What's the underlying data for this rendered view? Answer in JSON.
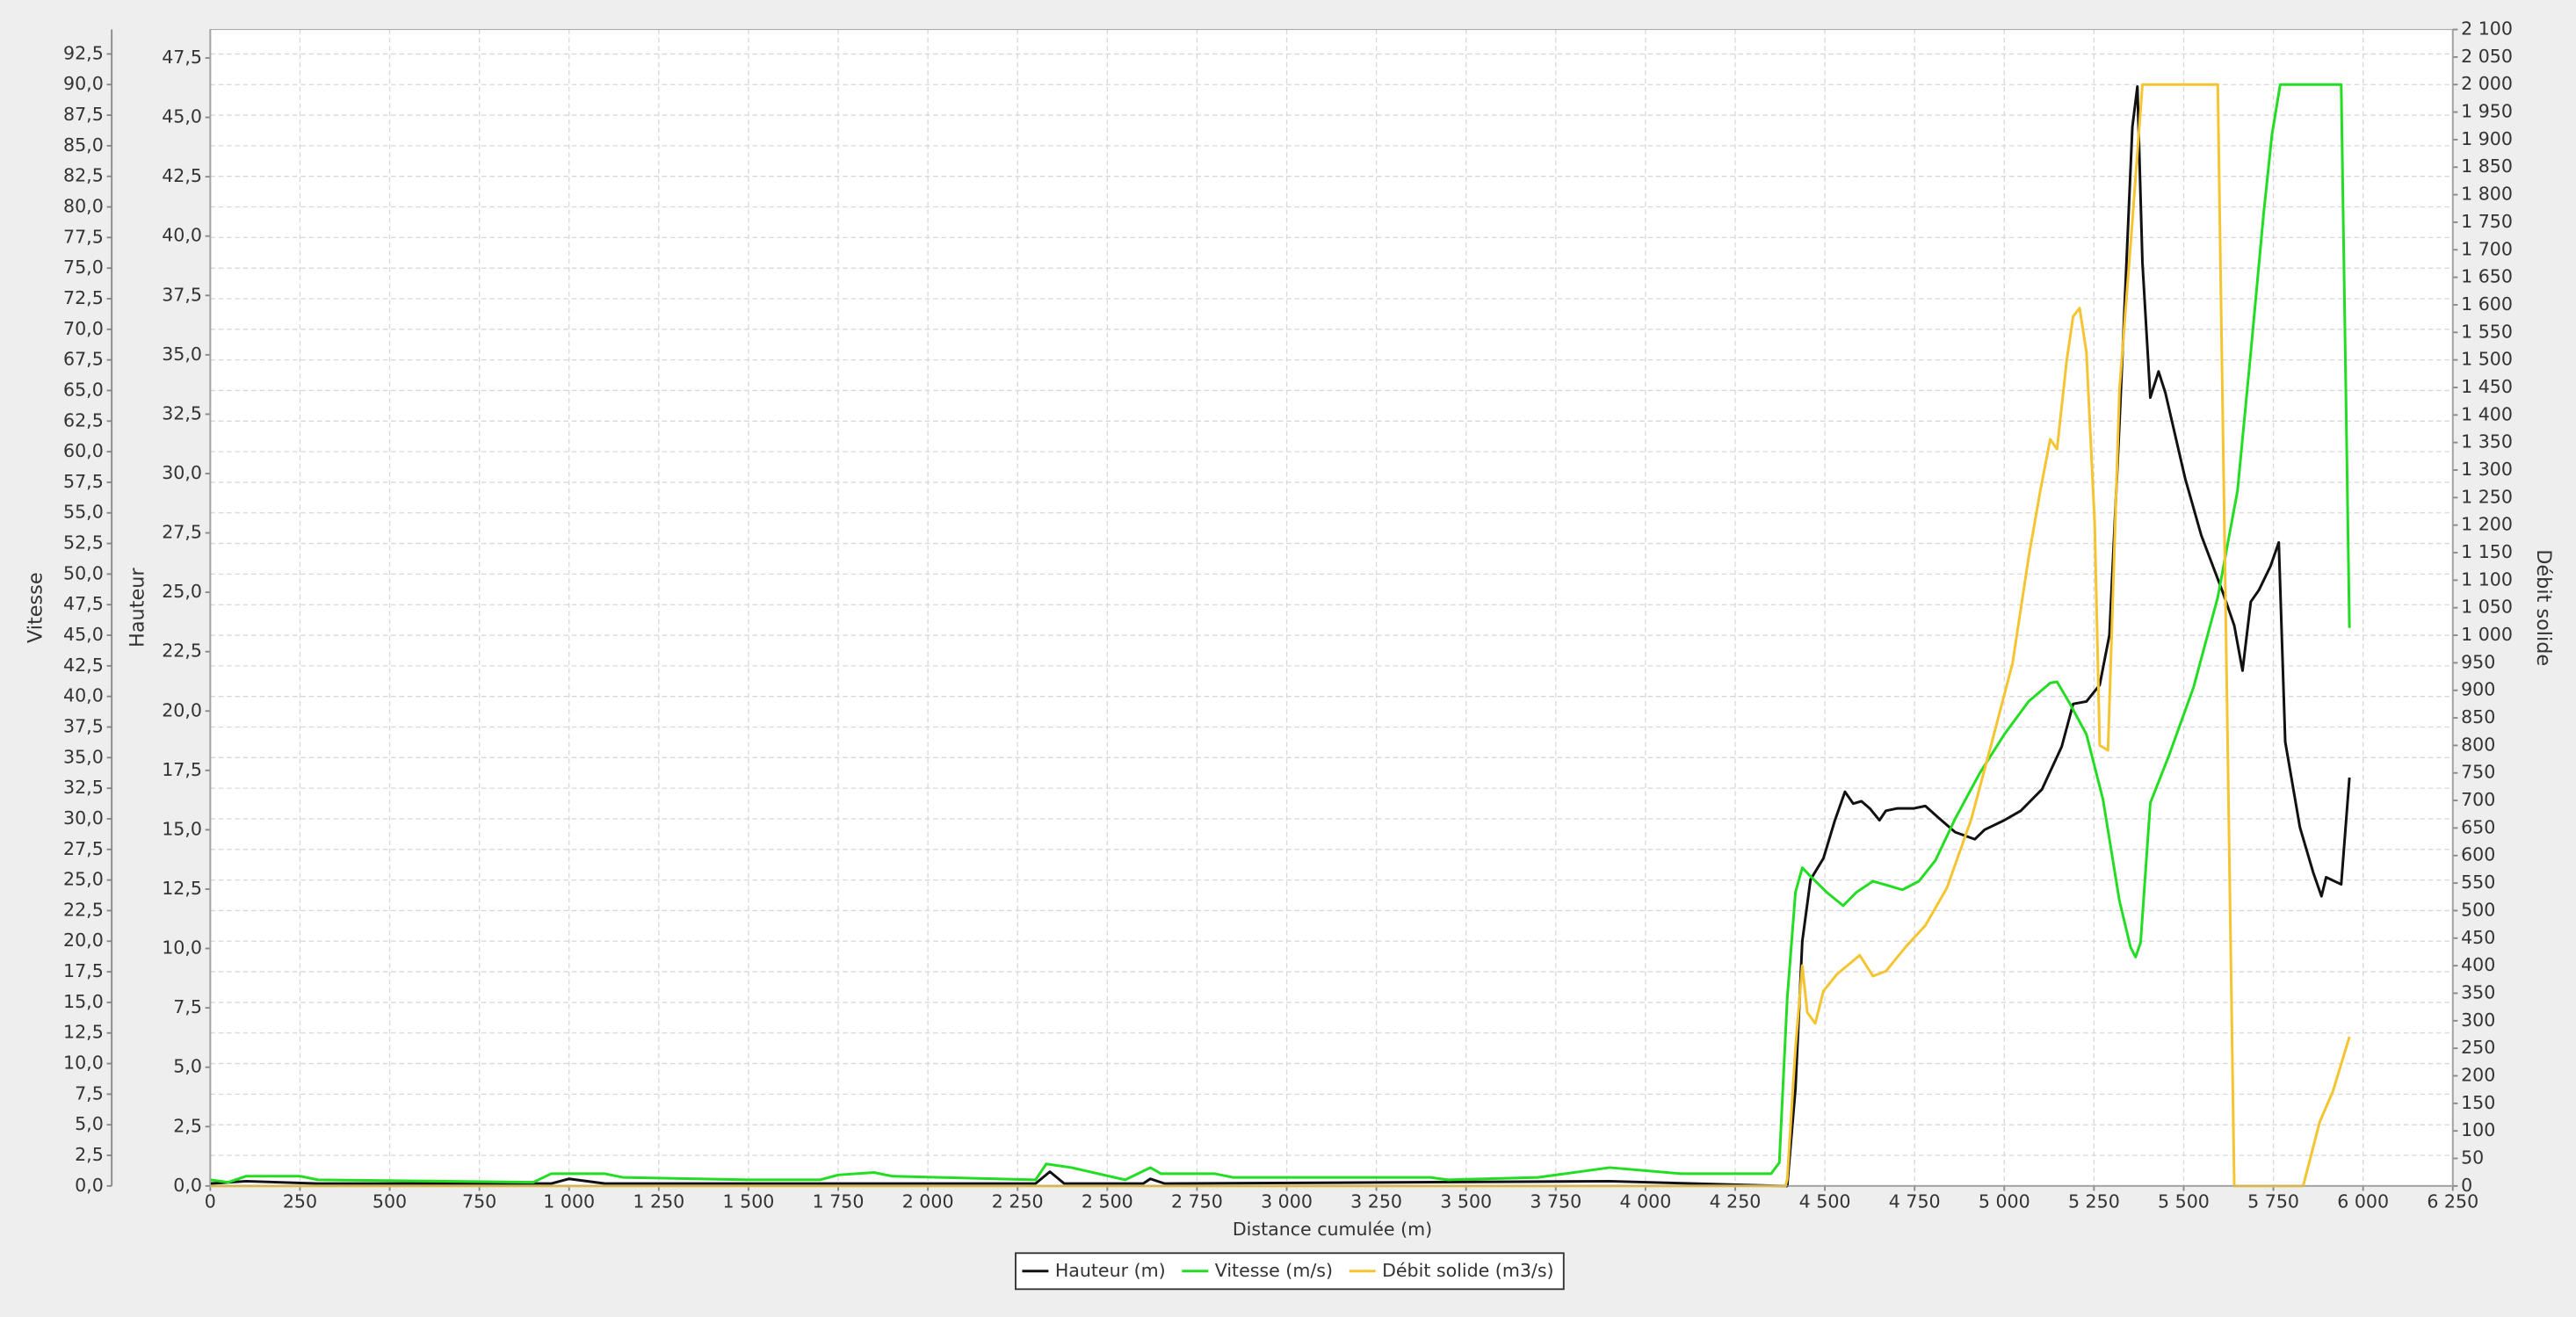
{
  "chart_data": {
    "type": "line",
    "x_label": "Distance cumulée (m)",
    "xlim": [
      0,
      6250
    ],
    "xticks": [
      0,
      250,
      500,
      750,
      {
        "value": 1000,
        "label": "1 000"
      },
      {
        "value": 1250,
        "label": "1 250"
      },
      {
        "value": 1500,
        "label": "1 500"
      },
      {
        "value": 1750,
        "label": "1 750"
      },
      {
        "value": 2000,
        "label": "2 000"
      },
      {
        "value": 2250,
        "label": "2 250"
      },
      {
        "value": 2500,
        "label": "2 500"
      },
      {
        "value": 2750,
        "label": "2 750"
      },
      {
        "value": 3000,
        "label": "3 000"
      },
      {
        "value": 3250,
        "label": "3 250"
      },
      {
        "value": 3500,
        "label": "3 500"
      },
      {
        "value": 3750,
        "label": "3 750"
      },
      {
        "value": 4000,
        "label": "4 000"
      },
      {
        "value": 4250,
        "label": "4 250"
      },
      {
        "value": 4500,
        "label": "4 500"
      },
      {
        "value": 4750,
        "label": "4 750"
      },
      {
        "value": 5000,
        "label": "5 000"
      },
      {
        "value": 5250,
        "label": "5 250"
      },
      {
        "value": 5500,
        "label": "5 500"
      },
      {
        "value": 5750,
        "label": "5 750"
      },
      {
        "value": 6000,
        "label": "6 000"
      },
      {
        "value": 6250,
        "label": "6 250"
      }
    ],
    "grid": true,
    "y_axes": [
      {
        "label": "Vitesse",
        "lim": [
          0,
          94.5
        ],
        "ticks": [
          {
            "value": 0,
            "label": "0,0"
          },
          {
            "value": 2.5,
            "label": "2,5"
          },
          {
            "value": 5,
            "label": "5,0"
          },
          {
            "value": 7.5,
            "label": "7,5"
          },
          {
            "value": 10,
            "label": "10,0"
          },
          {
            "value": 12.5,
            "label": "12,5"
          },
          {
            "value": 15,
            "label": "15,0"
          },
          {
            "value": 17.5,
            "label": "17,5"
          },
          {
            "value": 20,
            "label": "20,0"
          },
          {
            "value": 22.5,
            "label": "22,5"
          },
          {
            "value": 25,
            "label": "25,0"
          },
          {
            "value": 27.5,
            "label": "27,5"
          },
          {
            "value": 30,
            "label": "30,0"
          },
          {
            "value": 32.5,
            "label": "32,5"
          },
          {
            "value": 35,
            "label": "35,0"
          },
          {
            "value": 37.5,
            "label": "37,5"
          },
          {
            "value": 40,
            "label": "40,0"
          },
          {
            "value": 42.5,
            "label": "42,5"
          },
          {
            "value": 45,
            "label": "45,0"
          },
          {
            "value": 47.5,
            "label": "47,5"
          },
          {
            "value": 50,
            "label": "50,0"
          },
          {
            "value": 52.5,
            "label": "52,5"
          },
          {
            "value": 55,
            "label": "55,0"
          },
          {
            "value": 57.5,
            "label": "57,5"
          },
          {
            "value": 60,
            "label": "60,0"
          },
          {
            "value": 62.5,
            "label": "62,5"
          },
          {
            "value": 65,
            "label": "65,0"
          },
          {
            "value": 67.5,
            "label": "67,5"
          },
          {
            "value": 70,
            "label": "70,0"
          },
          {
            "value": 72.5,
            "label": "72,5"
          },
          {
            "value": 75,
            "label": "75,0"
          },
          {
            "value": 77.5,
            "label": "77,5"
          },
          {
            "value": 80,
            "label": "80,0"
          },
          {
            "value": 82.5,
            "label": "82,5"
          },
          {
            "value": 85,
            "label": "85,0"
          },
          {
            "value": 87.5,
            "label": "87,5"
          },
          {
            "value": 90,
            "label": "90,0"
          },
          {
            "value": 92.5,
            "label": "92,5"
          }
        ]
      },
      {
        "label": "Hauteur",
        "lim": [
          0,
          48.7
        ],
        "ticks": [
          {
            "value": 0,
            "label": "0,0"
          },
          {
            "value": 2.5,
            "label": "2,5"
          },
          {
            "value": 5,
            "label": "5,0"
          },
          {
            "value": 7.5,
            "label": "7,5"
          },
          {
            "value": 10,
            "label": "10,0"
          },
          {
            "value": 12.5,
            "label": "12,5"
          },
          {
            "value": 15,
            "label": "15,0"
          },
          {
            "value": 17.5,
            "label": "17,5"
          },
          {
            "value": 20,
            "label": "20,0"
          },
          {
            "value": 22.5,
            "label": "22,5"
          },
          {
            "value": 25,
            "label": "25,0"
          },
          {
            "value": 27.5,
            "label": "27,5"
          },
          {
            "value": 30,
            "label": "30,0"
          },
          {
            "value": 32.5,
            "label": "32,5"
          },
          {
            "value": 35,
            "label": "35,0"
          },
          {
            "value": 37.5,
            "label": "37,5"
          },
          {
            "value": 40,
            "label": "40,0"
          },
          {
            "value": 42.5,
            "label": "42,5"
          },
          {
            "value": 45,
            "label": "45,0"
          },
          {
            "value": 47.5,
            "label": "47,5"
          }
        ]
      },
      {
        "label": "Débit solide",
        "lim": [
          0,
          2100
        ],
        "ticks": [
          0,
          50,
          100,
          150,
          200,
          250,
          300,
          350,
          400,
          450,
          500,
          550,
          600,
          650,
          700,
          750,
          800,
          850,
          900,
          950,
          {
            "value": 1000,
            "label": "1 000"
          },
          {
            "value": 1050,
            "label": "1 050"
          },
          {
            "value": 1100,
            "label": "1 100"
          },
          {
            "value": 1150,
            "label": "1 150"
          },
          {
            "value": 1200,
            "label": "1 200"
          },
          {
            "value": 1250,
            "label": "1 250"
          },
          {
            "value": 1300,
            "label": "1 300"
          },
          {
            "value": 1350,
            "label": "1 350"
          },
          {
            "value": 1400,
            "label": "1 400"
          },
          {
            "value": 1450,
            "label": "1 450"
          },
          {
            "value": 1500,
            "label": "1 500"
          },
          {
            "value": 1550,
            "label": "1 550"
          },
          {
            "value": 1600,
            "label": "1 600"
          },
          {
            "value": 1650,
            "label": "1 650"
          },
          {
            "value": 1700,
            "label": "1 700"
          },
          {
            "value": 1750,
            "label": "1 750"
          },
          {
            "value": 1800,
            "label": "1 800"
          },
          {
            "value": 1850,
            "label": "1 850"
          },
          {
            "value": 1900,
            "label": "1 900"
          },
          {
            "value": 1950,
            "label": "1 950"
          },
          {
            "value": 2000,
            "label": "2 000"
          },
          {
            "value": 2050,
            "label": "2 050"
          },
          {
            "value": 2100,
            "label": "2 100"
          }
        ]
      }
    ],
    "series": [
      {
        "name": "Hauteur (m)",
        "color": "#111111",
        "axis": 1,
        "x": [
          0,
          100,
          300,
          950,
          1000,
          1100,
          2300,
          2340,
          2380,
          2600,
          2620,
          2660,
          3900,
          4380,
          4395,
          4418,
          4437,
          4460,
          4496,
          4528,
          4556,
          4579,
          4602,
          4625,
          4652,
          4670,
          4702,
          4748,
          4780,
          4817,
          4863,
          4918,
          4945,
          5000,
          5046,
          5105,
          5160,
          5192,
          5229,
          5266,
          5293,
          5321,
          5357,
          5371,
          5385,
          5407,
          5430,
          5449,
          5504,
          5549,
          5609,
          5641,
          5664,
          5687,
          5710,
          5742,
          5765,
          5783,
          5824,
          5861,
          5884,
          5897,
          5939,
          5962
        ],
        "values": [
          0.1,
          0.2,
          0.1,
          0.1,
          0.3,
          0.1,
          0.1,
          0.6,
          0.1,
          0.1,
          0.3,
          0.1,
          0.2,
          0,
          0,
          4.1,
          10.3,
          12.9,
          13.8,
          15.4,
          16.6,
          16.1,
          16.2,
          15.9,
          15.4,
          15.8,
          15.9,
          15.9,
          16.0,
          15.5,
          14.9,
          14.6,
          15.0,
          15.4,
          15.8,
          16.7,
          18.5,
          20.3,
          20.4,
          21.1,
          23.2,
          32.1,
          44.6,
          46.3,
          38.9,
          33.2,
          34.3,
          33.4,
          29.8,
          27.4,
          25.0,
          23.6,
          21.7,
          24.6,
          25.1,
          26.1,
          27.1,
          18.7,
          15.1,
          13.2,
          12.2,
          13.0,
          12.7,
          17.2
        ]
      },
      {
        "name": "Vitesse (m/s)",
        "color": "#22dd22",
        "axis": 0,
        "x": [
          0,
          50,
          100,
          250,
          300,
          900,
          950,
          1100,
          1150,
          1500,
          1700,
          1750,
          1850,
          1900,
          2300,
          2330,
          2400,
          2550,
          2620,
          2650,
          2800,
          2850,
          3400,
          3450,
          3700,
          3900,
          4100,
          4350,
          4373,
          4395,
          4418,
          4437,
          4460,
          4505,
          4551,
          4588,
          4634,
          4670,
          4716,
          4762,
          4808,
          4863,
          4931,
          5000,
          5068,
          5128,
          5147,
          5183,
          5229,
          5275,
          5321,
          5352,
          5366,
          5380,
          5407,
          5458,
          5527,
          5595,
          5650,
          5687,
          5723,
          5746,
          5769,
          5939,
          5962
        ],
        "values": [
          0.5,
          0.3,
          0.8,
          0.8,
          0.5,
          0.3,
          1.0,
          1.0,
          0.7,
          0.5,
          0.5,
          0.9,
          1.1,
          0.8,
          0.5,
          1.8,
          1.5,
          0.5,
          1.5,
          1.0,
          1.0,
          0.7,
          0.7,
          0.5,
          0.7,
          1.5,
          1.0,
          1.0,
          1.9,
          15.3,
          24.0,
          26.0,
          25.3,
          24.0,
          22.9,
          24.0,
          24.9,
          24.6,
          24.2,
          24.9,
          26.6,
          30.0,
          33.7,
          36.9,
          39.6,
          41.1,
          41.2,
          39.4,
          36.9,
          31.6,
          23.3,
          19.5,
          18.7,
          19.9,
          31.3,
          35.1,
          40.7,
          48.1,
          56.8,
          68.1,
          79.5,
          85.9,
          90.0,
          90.0,
          45.6
        ]
      },
      {
        "name": "Débit solide (m3/s)",
        "color": "#f5c431",
        "axis": 2,
        "x": [
          0,
          4390,
          4395,
          4418,
          4437,
          4451,
          4473,
          4496,
          4533,
          4597,
          4634,
          4670,
          4725,
          4780,
          4840,
          4908,
          4963,
          5023,
          5068,
          5100,
          5128,
          5147,
          5174,
          5192,
          5210,
          5229,
          5252,
          5266,
          5289,
          5321,
          5357,
          5385,
          5595,
          5641,
          5833,
          5879,
          5916,
          5962
        ],
        "values": [
          0,
          0,
          12,
          250,
          400,
          315,
          295,
          354,
          384,
          419,
          381,
          390,
          434,
          473,
          541,
          666,
          800,
          949,
          1142,
          1261,
          1356,
          1338,
          1499,
          1579,
          1594,
          1514,
          1202,
          800,
          791,
          1446,
          1752,
          2000,
          2000,
          0,
          0,
          116,
          172,
          271
        ]
      }
    ]
  }
}
